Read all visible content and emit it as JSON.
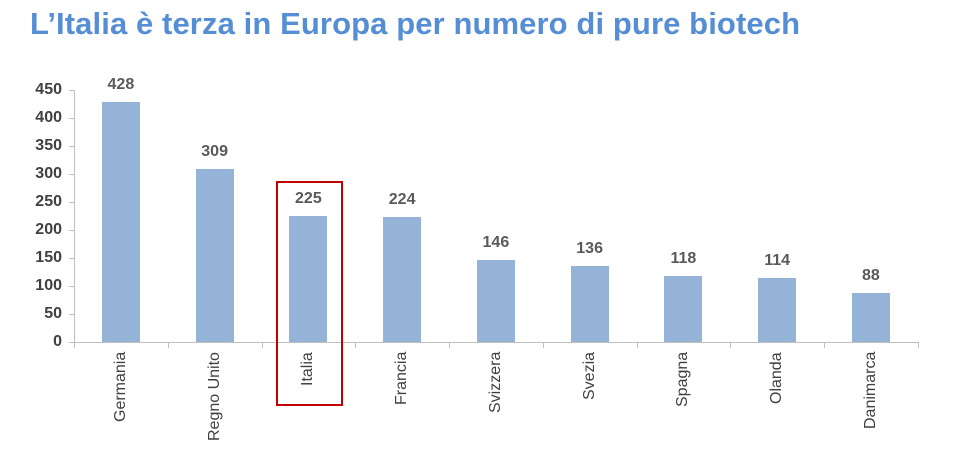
{
  "title": "L’Italia è terza in Europa per numero di pure biotech",
  "colors": {
    "title": "#558ed5",
    "bar": "#95b3d7",
    "highlight_box": "#c00000",
    "axis": "#bfbfbf",
    "text": "#404040"
  },
  "chart_data": {
    "type": "bar",
    "title": "L’Italia è terza in Europa per numero di pure biotech",
    "xlabel": "",
    "ylabel": "",
    "categories": [
      "Germania",
      "Regno Unito",
      "Italia",
      "Francia",
      "Svizzera",
      "Svezia",
      "Spagna",
      "Olanda",
      "Danimarca"
    ],
    "values": [
      428,
      309,
      225,
      224,
      146,
      136,
      118,
      114,
      88
    ],
    "ylim": [
      0,
      450
    ],
    "yticks": [
      0,
      50,
      100,
      150,
      200,
      250,
      300,
      350,
      400,
      450
    ],
    "grid": false,
    "legend": null,
    "data_labels": true,
    "highlighted_category": "Italia"
  },
  "yticks": [
    "0",
    "50",
    "100",
    "150",
    "200",
    "250",
    "300",
    "350",
    "400",
    "450"
  ],
  "bars": [
    {
      "label": "Germania",
      "value": "428"
    },
    {
      "label": "Regno Unito",
      "value": "309"
    },
    {
      "label": "Italia",
      "value": "225"
    },
    {
      "label": "Francia",
      "value": "224"
    },
    {
      "label": "Svizzera",
      "value": "146"
    },
    {
      "label": "Svezia",
      "value": "136"
    },
    {
      "label": "Spagna",
      "value": "118"
    },
    {
      "label": "Olanda",
      "value": "114"
    },
    {
      "label": "Danimarca",
      "value": "88"
    }
  ]
}
